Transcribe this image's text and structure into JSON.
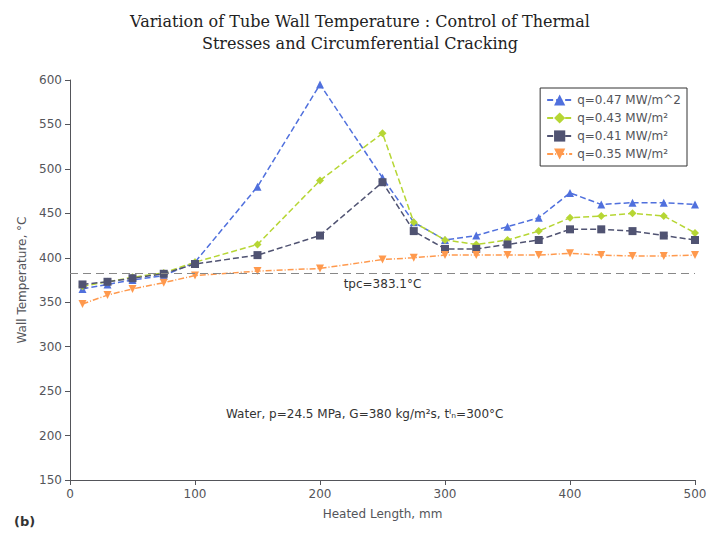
{
  "chart_data": {
    "type": "line",
    "title": "Variation of Tube Wall Temperature : Control of Thermal",
    "subtitle": "Stresses and Circumferential Cracking",
    "x_label": "Heated Length, mm",
    "y_label": "Wall Temperature, °C",
    "xlim": [
      0,
      500
    ],
    "ylim": [
      150,
      600
    ],
    "xticks": [
      0,
      100,
      200,
      300,
      400,
      500
    ],
    "yticks": [
      150,
      200,
      250,
      300,
      350,
      400,
      450,
      500,
      550,
      600
    ],
    "grid": false,
    "legend": "upper right",
    "x": [
      10,
      30,
      50,
      75,
      100,
      150,
      200,
      250,
      275,
      300,
      325,
      350,
      375,
      400,
      425,
      450,
      475,
      500
    ],
    "series": [
      {
        "name": "q=0.47 MW/m^2",
        "marker": "triangle_up",
        "line_style": "dashed",
        "values": [
          365,
          370,
          375,
          380,
          395,
          480,
          595,
          490,
          440,
          420,
          425,
          435,
          445,
          473,
          460,
          462,
          462,
          460
        ]
      },
      {
        "name": "q=0.43 MW/m²",
        "marker": "diamond",
        "line_style": "dashed",
        "values": [
          368,
          373,
          378,
          383,
          395,
          415,
          487,
          540,
          440,
          420,
          415,
          420,
          430,
          445,
          447,
          450,
          447,
          428
        ]
      },
      {
        "name": "q=0.41 MW/m²",
        "marker": "square",
        "line_style": "dashed",
        "values": [
          370,
          373,
          377,
          382,
          393,
          403,
          425,
          485,
          430,
          410,
          410,
          415,
          420,
          432,
          432,
          430,
          425,
          420
        ]
      },
      {
        "name": "q=0.35 MW/m²",
        "marker": "triangle_down",
        "line_style": "dashdot",
        "values": [
          348,
          358,
          365,
          372,
          380,
          385,
          388,
          398,
          400,
          403,
          403,
          403,
          403,
          405,
          403,
          402,
          402,
          403
        ]
      }
    ],
    "hlines": [
      {
        "value": 383.1,
        "label": "tpc=383.1°C"
      }
    ],
    "annotations": [
      "Water, p=24.5 MPa, G=380 kg/m²s, tᴵₙ=300°C",
      "(b)"
    ]
  }
}
